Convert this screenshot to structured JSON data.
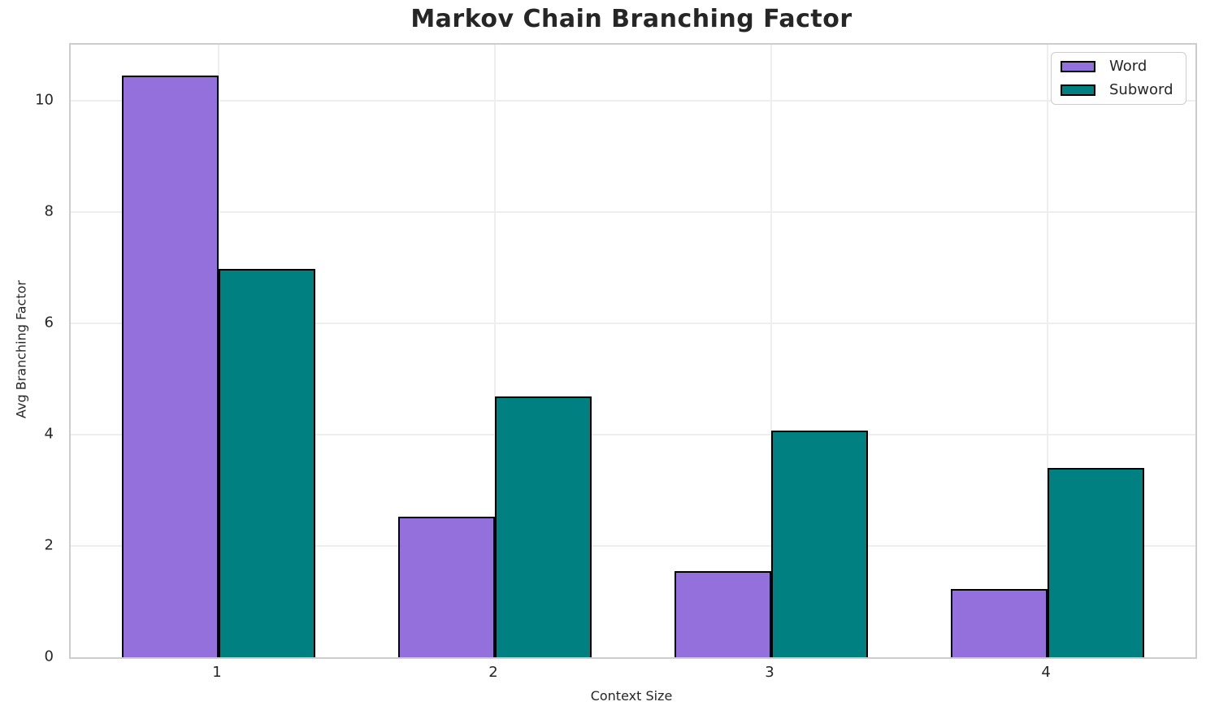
{
  "title": "Markov Chain Branching Factor",
  "chart_data": {
    "type": "bar",
    "categories": [
      "1",
      "2",
      "3",
      "4"
    ],
    "series": [
      {
        "name": "Word",
        "color": "#9370DB",
        "values": [
          10.45,
          2.52,
          1.54,
          1.22
        ]
      },
      {
        "name": "Subword",
        "color": "#008080",
        "values": [
          6.97,
          4.68,
          4.07,
          3.4
        ]
      }
    ],
    "xlabel": "Context Size",
    "ylabel": "Avg Branching Factor",
    "ylim": [
      0,
      11
    ],
    "yticks": [
      0,
      2,
      4,
      6,
      8,
      10
    ],
    "bar_width_fraction": 0.35,
    "bar_edge_color": "#000000",
    "grid": true,
    "grid_color": "#eeeeee",
    "spine_color": "#cdcdcd",
    "text_color": "#262626",
    "legend_position": "upper right"
  },
  "legend": {
    "items": [
      {
        "label": "Word"
      },
      {
        "label": "Subword"
      }
    ]
  }
}
